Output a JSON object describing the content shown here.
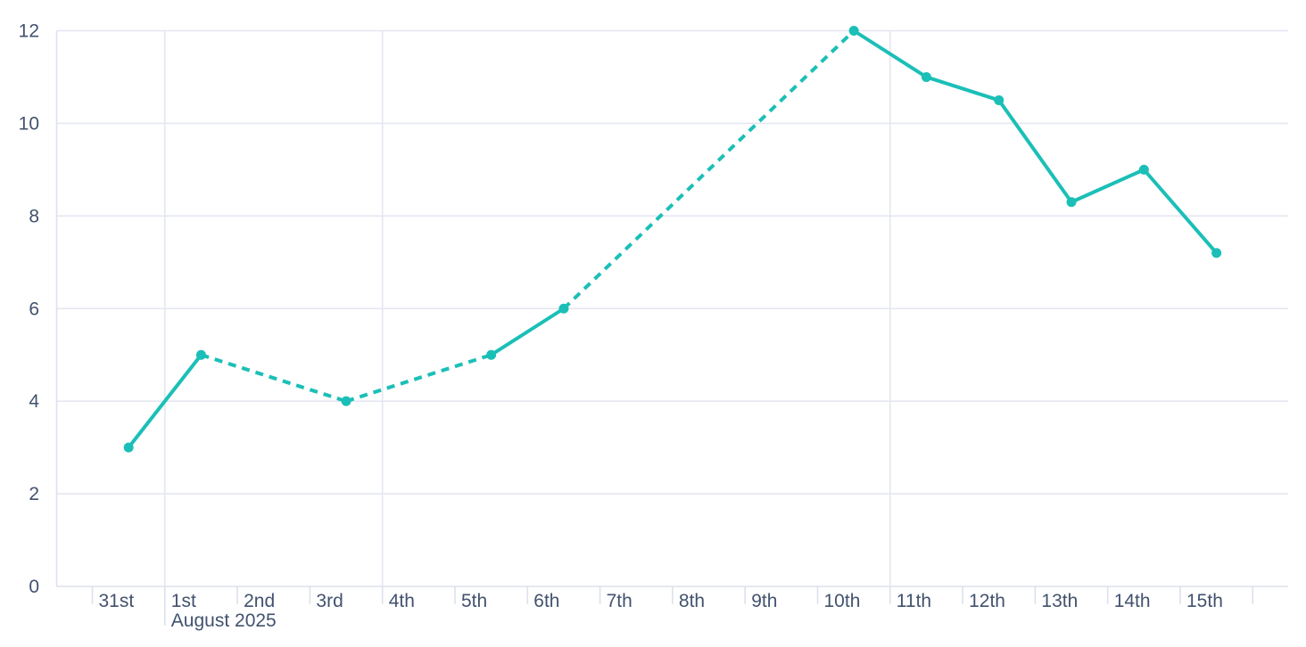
{
  "chart": {
    "background_color": "#ffffff",
    "series_color": "#1bbfb7",
    "grid_color": "#e4e7f1",
    "axis_color": "#dce1ec",
    "label_color": "#42526e",
    "y_axis": {
      "min": 0,
      "max": 12,
      "tick_step": 2,
      "tick_labels": [
        "0",
        "2",
        "4",
        "6",
        "8",
        "10",
        "12"
      ]
    },
    "x_axis": {
      "tick_labels": [
        "31st",
        "1st",
        "2nd",
        "3rd",
        "4th",
        "5th",
        "6th",
        "7th",
        "8th",
        "9th",
        "10th",
        "11th",
        "12th",
        "13th",
        "14th",
        "15th",
        ""
      ],
      "month_label": "August 2025",
      "month_label_tick_index": 1,
      "vertical_gridline_tick_indices": [
        1,
        4,
        11
      ]
    }
  },
  "chart_data": {
    "type": "line",
    "title": "",
    "categories": [
      "Jul 31",
      "Aug 1",
      "Aug 2",
      "Aug 3",
      "Aug 4",
      "Aug 5",
      "Aug 6",
      "Aug 7",
      "Aug 8",
      "Aug 9",
      "Aug 10",
      "Aug 11",
      "Aug 12",
      "Aug 13",
      "Aug 14",
      "Aug 15"
    ],
    "series": [
      {
        "name": "value",
        "values": [
          3,
          5,
          null,
          4,
          null,
          5,
          6,
          null,
          null,
          null,
          12,
          11,
          10.5,
          8.3,
          9,
          7.2
        ]
      }
    ],
    "missing_data_rendering": "dashed straight bridge between known neighbors, no markers on missing days",
    "solid_segments_between_day_indices": [
      [
        0,
        1
      ],
      [
        5,
        6
      ],
      [
        10,
        11
      ],
      [
        11,
        12
      ],
      [
        12,
        13
      ],
      [
        13,
        14
      ],
      [
        14,
        15
      ]
    ],
    "dashed_segments_between_day_indices": [
      [
        1,
        3
      ],
      [
        3,
        5
      ],
      [
        6,
        10
      ]
    ],
    "marker": "filled circle",
    "xlabel": "August 2025",
    "ylabel": "",
    "ylim": [
      0,
      12
    ],
    "grid": "horizontal lines every 2 units; vertical lines at Aug 1, Aug 4, Aug 11",
    "legend": "none"
  }
}
